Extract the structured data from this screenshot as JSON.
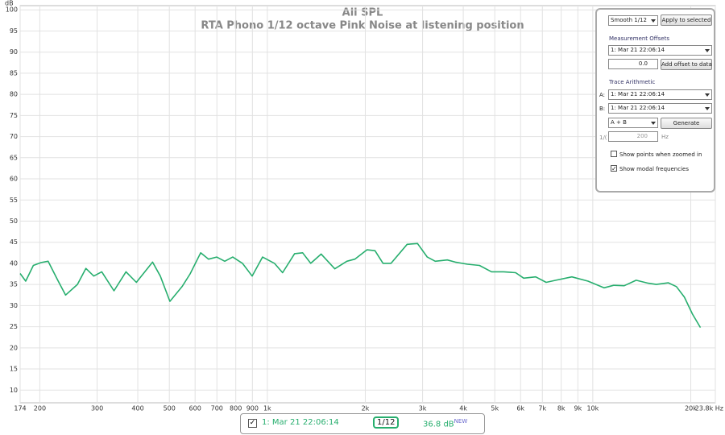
{
  "chart_data": {
    "type": "line",
    "title": "All SPL",
    "subtitle": "RTA Phono 1/12 octave Pink Noise at listening position",
    "y_label": "dB",
    "x_scale": "log",
    "grid": true,
    "xlim": [
      174,
      23800
    ],
    "ylim": [
      7,
      101
    ],
    "xticks": [
      174,
      200,
      300,
      400,
      500,
      600,
      700,
      800,
      900,
      {
        "value": 1000,
        "label": "1k"
      },
      {
        "value": 2000,
        "label": "2k"
      },
      {
        "value": 3000,
        "label": "3k"
      },
      {
        "value": 4000,
        "label": "4k"
      },
      {
        "value": 5000,
        "label": "5k"
      },
      {
        "value": 6000,
        "label": "6k"
      },
      {
        "value": 7000,
        "label": "7k"
      },
      {
        "value": 8000,
        "label": "8k"
      },
      {
        "value": 9000,
        "label": "9k"
      },
      {
        "value": 10000,
        "label": "10k"
      },
      {
        "value": 20000,
        "label": "20k"
      },
      {
        "value": 23800,
        "label": "23.8k Hz"
      }
    ],
    "yticks": [
      10,
      15,
      20,
      25,
      30,
      35,
      40,
      45,
      50,
      55,
      60,
      65,
      70,
      75,
      80,
      85,
      90,
      95,
      100
    ],
    "series": [
      {
        "name": "1: Mar 21 22:06:14",
        "color": "#27ae6e",
        "x": [
          174,
          181,
          191,
          202,
          212,
          227,
          240,
          261,
          277,
          293,
          310,
          338,
          368,
          396,
          444,
          469,
          502,
          547,
          579,
          624,
          660,
          699,
          740,
          783,
          839,
          898,
          967,
          1052,
          1114,
          1213,
          1284,
          1359,
          1464,
          1612,
          1756,
          1858,
          2024,
          2142,
          2268,
          2400,
          2689,
          2895,
          3100,
          3281,
          3574,
          3783,
          4120,
          4487,
          4886,
          5321,
          5794,
          6134,
          6678,
          7193,
          7699,
          8627,
          9665,
          10830,
          11590,
          12490,
          13590,
          14810,
          15670,
          17070,
          18070,
          19120,
          20240,
          21420
        ],
        "values": [
          37.6,
          35.8,
          39.5,
          40.2,
          40.5,
          36,
          32.5,
          35,
          38.8,
          37,
          38,
          33.5,
          38,
          35.5,
          40.3,
          37,
          31,
          34.5,
          37.5,
          42.5,
          41,
          41.5,
          40.5,
          41.5,
          40,
          37,
          41.5,
          40,
          37.8,
          42.3,
          42.5,
          40,
          42.2,
          38.7,
          40.5,
          41,
          43.2,
          43,
          40,
          40,
          44.5,
          44.7,
          41.5,
          40.5,
          40.8,
          40.3,
          39.8,
          39.5,
          38,
          38,
          37.8,
          36.5,
          36.8,
          35.5,
          36,
          36.8,
          35.8,
          34.2,
          34.8,
          34.7,
          36,
          35.3,
          35,
          35.4,
          34.5,
          32,
          28,
          24.8
        ]
      }
    ]
  },
  "legend": {
    "checked": true,
    "smoothing": "1/12",
    "level": "36.8 dB",
    "tag": "NEW"
  },
  "controls": {
    "smoothing": "Smooth 1/12",
    "apply_button": "Apply to selected",
    "offsets_heading": "Measurement Offsets",
    "offset_measurement": "1: Mar 21 22:06:14",
    "offset_value": "0.0",
    "offset_button": "Add offset to data",
    "arithmetic_heading": "Trace Arithmetic",
    "a_label": "A:",
    "a_measurement": "1: Mar 21 22:06:14",
    "b_label": "B:",
    "b_measurement": "1: Mar 21 22:06:14",
    "operation": "A + B",
    "generate_button": "Generate",
    "reciprocal_label": "1/(",
    "reciprocal_value": "200",
    "reciprocal_unit": "Hz",
    "show_points": {
      "label": "Show points when zoomed in",
      "checked": false
    },
    "show_modal": {
      "label": "Show modal frequencies",
      "checked": true
    }
  }
}
